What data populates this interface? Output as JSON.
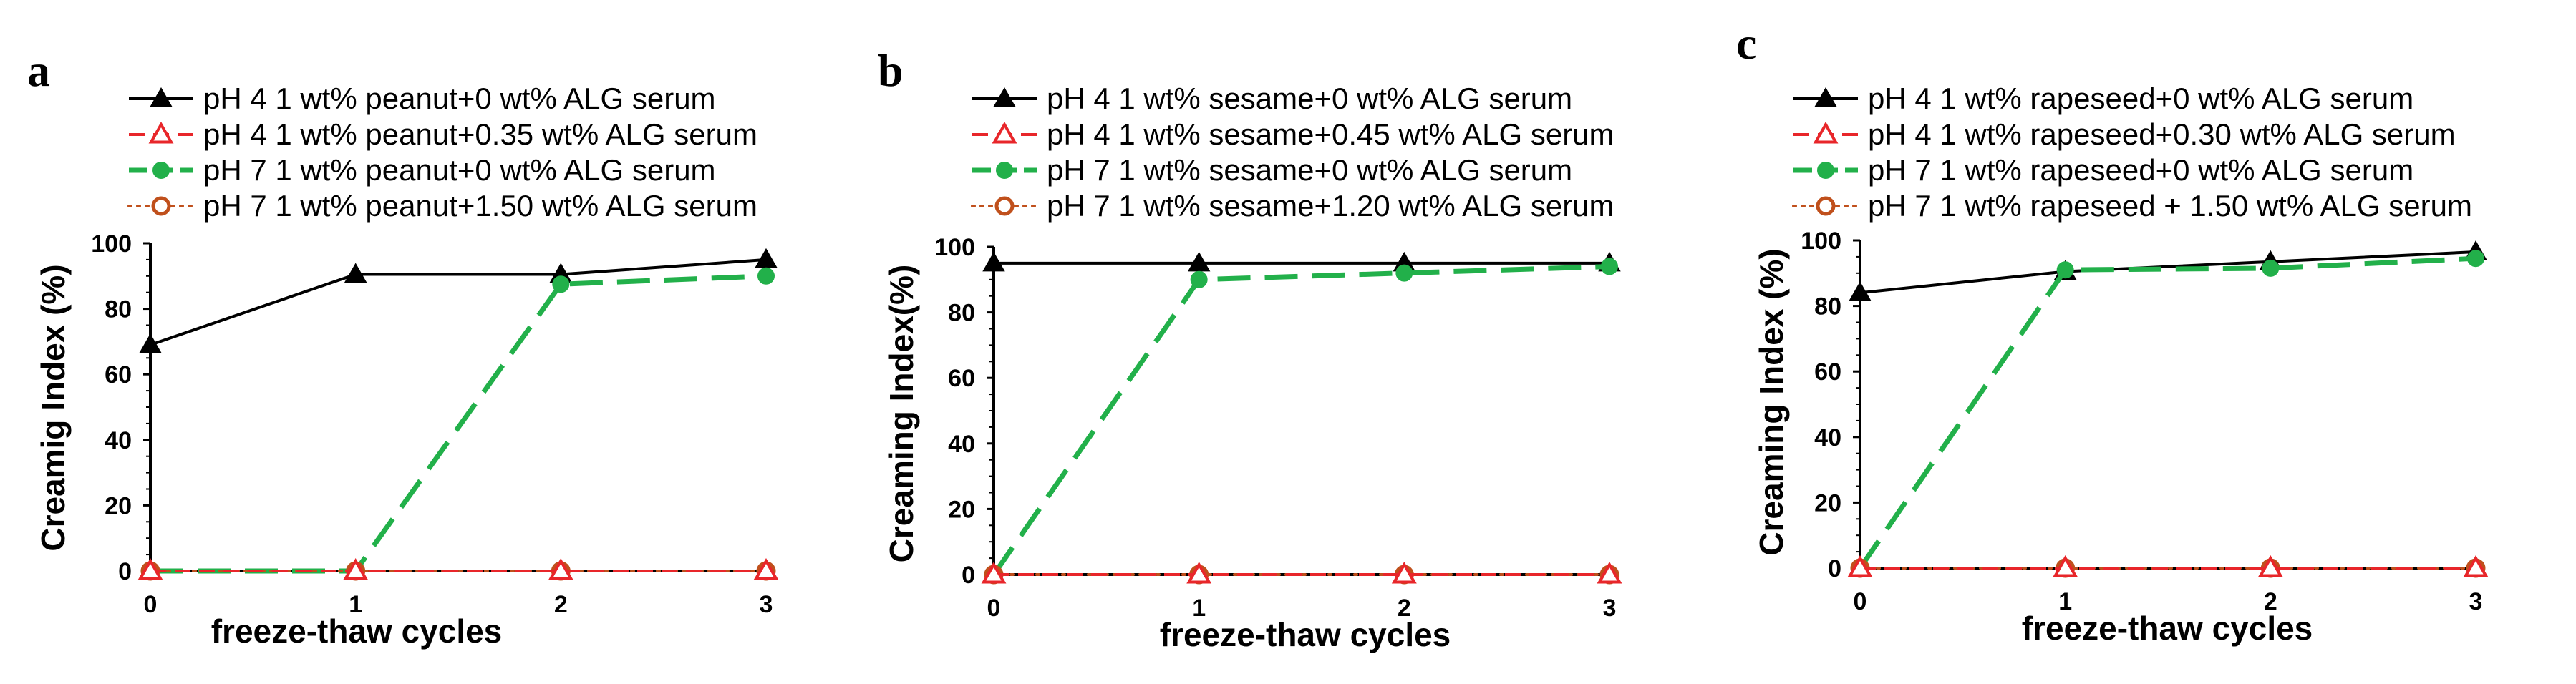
{
  "chart_data": [
    {
      "type": "line",
      "panel": "a",
      "xlabel": "freeze-thaw  cycles",
      "ylabel": "Creamig Index (%)",
      "x": [
        0,
        1,
        2,
        3
      ],
      "xticks": [
        "0",
        "1",
        "2",
        "3"
      ],
      "yticks": [
        "0",
        "20",
        "40",
        "60",
        "80",
        "100"
      ],
      "xlim": [
        0,
        3
      ],
      "ylim": [
        0,
        100
      ],
      "legend_position": "top",
      "series": [
        {
          "name": "pH 4 1 wt% peanut+0 wt% ALG serum",
          "values": [
            69,
            90.5,
            90.5,
            95
          ],
          "color": "#000000",
          "dash": "solid",
          "marker": "triangle"
        },
        {
          "name": "pH 4 1 wt% peanut+0.35 wt% ALG serum",
          "values": [
            0,
            0,
            0,
            0
          ],
          "color": "#e8262a",
          "dash": "dash",
          "marker": "triangle-open"
        },
        {
          "name": "pH 7 1 wt% peanut+0 wt% ALG serum",
          "values": [
            0,
            0,
            87.5,
            90
          ],
          "color": "#22b04a",
          "dash": "longdash",
          "marker": "circle"
        },
        {
          "name": "pH 7 1 wt% peanut+1.50 wt% ALG serum",
          "values": [
            0,
            0,
            0,
            0
          ],
          "color": "#c0501c",
          "dash": "dot",
          "marker": "circle-open"
        }
      ]
    },
    {
      "type": "line",
      "panel": "b",
      "xlabel": "freeze-thaw  cycles",
      "ylabel": "Creaming Index(%)",
      "x": [
        0,
        1,
        2,
        3
      ],
      "xticks": [
        "0",
        "1",
        "2",
        "3"
      ],
      "yticks": [
        "0",
        "20",
        "40",
        "60",
        "80",
        "100"
      ],
      "xlim": [
        0,
        3
      ],
      "ylim": [
        0,
        100
      ],
      "legend_position": "top",
      "series": [
        {
          "name": "pH 4 1 wt% sesame+0 wt% ALG serum",
          "values": [
            95,
            95,
            95,
            95
          ],
          "color": "#000000",
          "dash": "solid",
          "marker": "triangle"
        },
        {
          "name": "pH 4 1 wt% sesame+0.45 wt% ALG serum",
          "values": [
            0,
            0,
            0,
            0
          ],
          "color": "#e8262a",
          "dash": "dash",
          "marker": "triangle-open"
        },
        {
          "name": "pH 7 1 wt% sesame+0 wt% ALG serum",
          "values": [
            0,
            90,
            92,
            94
          ],
          "color": "#22b04a",
          "dash": "longdash",
          "marker": "circle"
        },
        {
          "name": "pH 7 1 wt% sesame+1.20 wt% ALG serum",
          "values": [
            0,
            0,
            0,
            0
          ],
          "color": "#c0501c",
          "dash": "dot",
          "marker": "circle-open"
        }
      ]
    },
    {
      "type": "line",
      "panel": "c",
      "xlabel": "freeze-thaw  cycles",
      "ylabel": "Creaming Index (%)",
      "x": [
        0,
        1,
        2,
        3
      ],
      "xticks": [
        "0",
        "1",
        "2",
        "3"
      ],
      "yticks": [
        "0",
        "20",
        "40",
        "60",
        "80",
        "100"
      ],
      "xlim": [
        0,
        3
      ],
      "ylim": [
        0,
        100
      ],
      "legend_position": "top",
      "series": [
        {
          "name": "pH 4 1 wt% rapeseed+0 wt% ALG serum",
          "values": [
            84,
            90.5,
            93.5,
            96.5
          ],
          "color": "#000000",
          "dash": "solid",
          "marker": "triangle"
        },
        {
          "name": "pH 4 1 wt% rapeseed+0.30 wt% ALG serum",
          "values": [
            0,
            0,
            0,
            0
          ],
          "color": "#e8262a",
          "dash": "dash",
          "marker": "triangle-open"
        },
        {
          "name": "pH 7 1 wt% rapeseed+0 wt% ALG serum",
          "values": [
            0,
            91,
            91.5,
            94.5
          ],
          "color": "#22b04a",
          "dash": "longdash",
          "marker": "circle"
        },
        {
          "name": "pH 7 1 wt% rapeseed + 1.50 wt% ALG serum",
          "values": [
            0,
            0,
            0,
            0
          ],
          "color": "#c0501c",
          "dash": "dot",
          "marker": "circle-open"
        }
      ]
    }
  ]
}
